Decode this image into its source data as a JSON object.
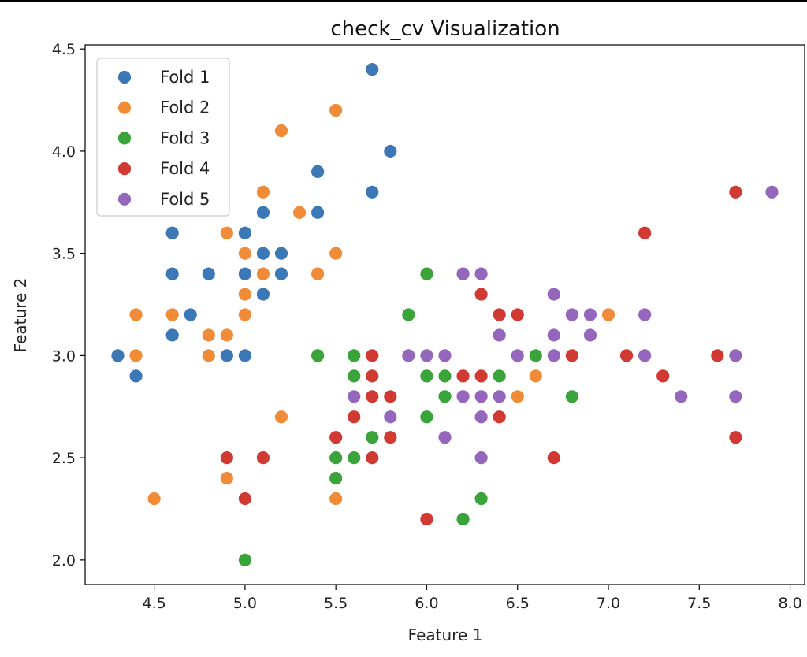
{
  "chart_data": {
    "type": "scatter",
    "title": "check_cv Visualization",
    "xlabel": "Feature 1",
    "ylabel": "Feature 2",
    "xlim": [
      4.12,
      8.08
    ],
    "ylim": [
      1.88,
      4.52
    ],
    "xticks": [
      "4.5",
      "5.0",
      "5.5",
      "6.0",
      "6.5",
      "7.0",
      "7.5",
      "8.0"
    ],
    "yticks": [
      "2.0",
      "2.5",
      "3.0",
      "3.5",
      "4.0",
      "4.5"
    ],
    "legend_position": "top-left",
    "grid": false,
    "series": [
      {
        "name": "Fold 1",
        "color": "#3b78b5",
        "points": [
          [
            4.3,
            3.0
          ],
          [
            4.4,
            2.9
          ],
          [
            4.6,
            3.1
          ],
          [
            4.6,
            3.4
          ],
          [
            4.6,
            3.6
          ],
          [
            4.7,
            3.2
          ],
          [
            4.8,
            3.4
          ],
          [
            4.9,
            3.0
          ],
          [
            5.0,
            3.0
          ],
          [
            5.0,
            3.4
          ],
          [
            5.0,
            3.6
          ],
          [
            5.1,
            3.3
          ],
          [
            5.1,
            3.5
          ],
          [
            5.1,
            3.7
          ],
          [
            5.2,
            3.4
          ],
          [
            5.2,
            3.5
          ],
          [
            5.4,
            3.7
          ],
          [
            5.4,
            3.9
          ],
          [
            5.7,
            3.8
          ],
          [
            5.7,
            4.4
          ],
          [
            5.8,
            4.0
          ]
        ]
      },
      {
        "name": "Fold 2",
        "color": "#f08c37",
        "points": [
          [
            4.4,
            3.0
          ],
          [
            4.4,
            3.2
          ],
          [
            4.5,
            2.3
          ],
          [
            4.6,
            3.2
          ],
          [
            4.8,
            3.0
          ],
          [
            4.8,
            3.1
          ],
          [
            4.9,
            2.4
          ],
          [
            4.9,
            3.1
          ],
          [
            4.9,
            3.6
          ],
          [
            5.0,
            3.2
          ],
          [
            5.0,
            3.3
          ],
          [
            5.0,
            3.5
          ],
          [
            5.1,
            3.4
          ],
          [
            5.1,
            3.8
          ],
          [
            5.2,
            2.7
          ],
          [
            5.2,
            4.1
          ],
          [
            5.3,
            3.7
          ],
          [
            5.4,
            3.4
          ],
          [
            5.5,
            2.3
          ],
          [
            5.5,
            3.5
          ],
          [
            5.5,
            4.2
          ],
          [
            6.5,
            2.8
          ],
          [
            6.6,
            2.9
          ],
          [
            7.0,
            3.2
          ]
        ]
      },
      {
        "name": "Fold 3",
        "color": "#3aa33a",
        "points": [
          [
            5.0,
            2.0
          ],
          [
            5.4,
            3.0
          ],
          [
            5.5,
            2.4
          ],
          [
            5.5,
            2.5
          ],
          [
            5.6,
            2.5
          ],
          [
            5.6,
            2.9
          ],
          [
            5.6,
            3.0
          ],
          [
            5.7,
            2.6
          ],
          [
            5.9,
            3.2
          ],
          [
            6.0,
            2.7
          ],
          [
            6.0,
            2.9
          ],
          [
            6.0,
            3.4
          ],
          [
            6.1,
            2.8
          ],
          [
            6.1,
            2.9
          ],
          [
            6.2,
            2.2
          ],
          [
            6.3,
            2.3
          ],
          [
            6.4,
            2.9
          ],
          [
            6.6,
            3.0
          ],
          [
            6.8,
            2.8
          ]
        ]
      },
      {
        "name": "Fold 4",
        "color": "#d03a33",
        "points": [
          [
            4.9,
            2.5
          ],
          [
            5.0,
            2.3
          ],
          [
            5.1,
            2.5
          ],
          [
            5.5,
            2.6
          ],
          [
            5.6,
            2.7
          ],
          [
            5.7,
            2.5
          ],
          [
            5.7,
            2.8
          ],
          [
            5.7,
            2.9
          ],
          [
            5.7,
            3.0
          ],
          [
            5.8,
            2.6
          ],
          [
            5.8,
            2.8
          ],
          [
            6.0,
            2.2
          ],
          [
            6.2,
            2.9
          ],
          [
            6.3,
            2.9
          ],
          [
            6.3,
            3.3
          ],
          [
            6.4,
            2.7
          ],
          [
            6.4,
            3.2
          ],
          [
            6.5,
            3.2
          ],
          [
            6.7,
            2.5
          ],
          [
            6.8,
            3.0
          ],
          [
            7.1,
            3.0
          ],
          [
            7.2,
            3.6
          ],
          [
            7.3,
            2.9
          ],
          [
            7.6,
            3.0
          ],
          [
            7.7,
            2.6
          ],
          [
            7.7,
            3.8
          ]
        ]
      },
      {
        "name": "Fold 5",
        "color": "#9467bd",
        "points": [
          [
            5.6,
            2.8
          ],
          [
            5.8,
            2.7
          ],
          [
            5.9,
            3.0
          ],
          [
            6.0,
            3.0
          ],
          [
            6.1,
            2.6
          ],
          [
            6.1,
            3.0
          ],
          [
            6.2,
            2.8
          ],
          [
            6.2,
            3.4
          ],
          [
            6.3,
            2.5
          ],
          [
            6.3,
            2.7
          ],
          [
            6.3,
            2.8
          ],
          [
            6.3,
            3.4
          ],
          [
            6.4,
            2.8
          ],
          [
            6.4,
            3.1
          ],
          [
            6.5,
            3.0
          ],
          [
            6.7,
            3.0
          ],
          [
            6.7,
            3.1
          ],
          [
            6.7,
            3.3
          ],
          [
            6.8,
            3.2
          ],
          [
            6.9,
            3.1
          ],
          [
            6.9,
            3.2
          ],
          [
            7.2,
            3.0
          ],
          [
            7.2,
            3.2
          ],
          [
            7.4,
            2.8
          ],
          [
            7.7,
            2.8
          ],
          [
            7.7,
            3.0
          ],
          [
            7.9,
            3.8
          ]
        ]
      }
    ]
  }
}
